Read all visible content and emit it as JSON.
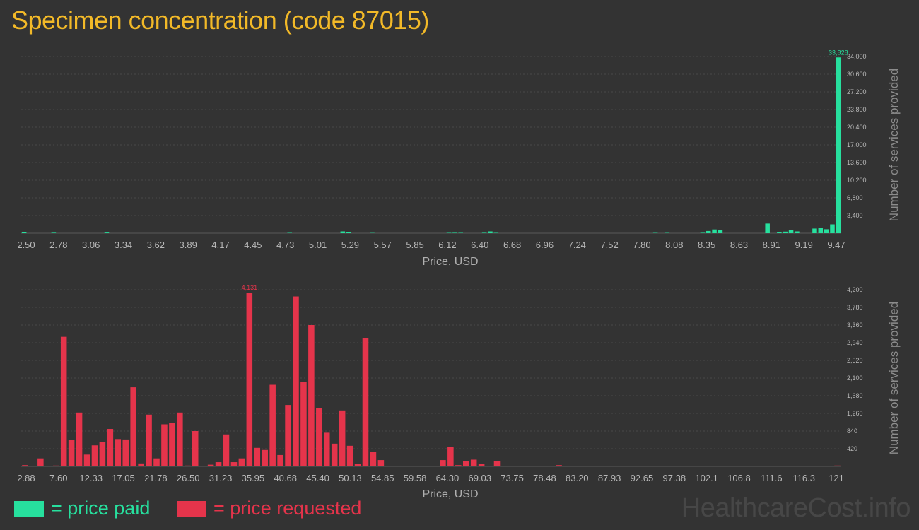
{
  "title": "Specimen concentration (code 87015)",
  "legend": {
    "paid": "= price paid",
    "requested": "= price requested"
  },
  "watermark": "HealthcareCost.info",
  "colors": {
    "paid": "#27e09e",
    "requested": "#e5344b",
    "title": "#f2b928",
    "background": "#333333"
  },
  "chart_data": [
    {
      "type": "bar",
      "name": "price paid",
      "xlabel": "Price, USD",
      "ylabel": "Number of services provided",
      "x_ticks": [
        "2.50",
        "2.78",
        "3.06",
        "3.34",
        "3.62",
        "3.89",
        "4.17",
        "4.45",
        "4.73",
        "5.01",
        "5.29",
        "5.57",
        "5.85",
        "6.12",
        "6.40",
        "6.68",
        "6.96",
        "7.24",
        "7.52",
        "7.80",
        "8.08",
        "8.35",
        "8.63",
        "8.91",
        "9.19",
        "9.47"
      ],
      "y_ticks": [
        "3,400",
        "6,800",
        "10,200",
        "13,600",
        "17,000",
        "20,400",
        "23,800",
        "27,200",
        "30,600",
        "34,000"
      ],
      "ylim": [
        0,
        34000
      ],
      "grid": true,
      "peak_label": "33,828",
      "values": [
        250,
        0,
        0,
        0,
        0,
        90,
        0,
        0,
        0,
        0,
        0,
        0,
        0,
        0,
        120,
        0,
        0,
        0,
        0,
        0,
        0,
        0,
        0,
        0,
        0,
        0,
        0,
        0,
        0,
        0,
        0,
        0,
        0,
        0,
        0,
        0,
        0,
        0,
        0,
        0,
        0,
        0,
        0,
        0,
        0,
        70,
        0,
        0,
        0,
        0,
        0,
        0,
        0,
        0,
        340,
        170,
        0,
        0,
        0,
        50,
        0,
        0,
        0,
        0,
        0,
        0,
        0,
        0,
        0,
        0,
        0,
        0,
        70,
        80,
        70,
        0,
        0,
        0,
        80,
        340,
        70,
        0,
        0,
        0,
        0,
        0,
        0,
        0,
        0,
        0,
        0,
        0,
        0,
        0,
        0,
        0,
        0,
        0,
        0,
        0,
        0,
        0,
        0,
        0,
        0,
        0,
        0,
        60,
        0,
        60,
        0,
        0,
        0,
        0,
        0,
        80,
        420,
        720,
        560,
        0,
        0,
        0,
        0,
        0,
        0,
        0,
        1850,
        0,
        170,
        300,
        680,
        340,
        0,
        0,
        890,
        1020,
        760,
        1700,
        33828
      ]
    },
    {
      "type": "bar",
      "name": "price requested",
      "xlabel": "Price, USD",
      "ylabel": "Number of services provided",
      "x_ticks": [
        "2.88",
        "7.60",
        "12.33",
        "17.05",
        "21.78",
        "26.50",
        "31.23",
        "35.95",
        "40.68",
        "45.40",
        "50.13",
        "54.85",
        "59.58",
        "64.30",
        "69.03",
        "73.75",
        "78.48",
        "83.20",
        "87.93",
        "92.65",
        "97.38",
        "102.1",
        "106.8",
        "111.6",
        "116.3",
        "121"
      ],
      "y_ticks": [
        "420",
        "840",
        "1,260",
        "1,680",
        "2,100",
        "2,520",
        "2,940",
        "3,360",
        "3,780",
        "4,200"
      ],
      "ylim": [
        0,
        4200
      ],
      "grid": true,
      "peak_label": "4,131",
      "values": [
        30,
        0,
        190,
        0,
        20,
        3080,
        630,
        1280,
        280,
        500,
        580,
        890,
        650,
        640,
        1880,
        70,
        1230,
        190,
        1000,
        1030,
        1280,
        20,
        840,
        0,
        40,
        100,
        760,
        100,
        190,
        4131,
        440,
        390,
        1940,
        270,
        1460,
        4040,
        2000,
        3360,
        1380,
        800,
        540,
        1330,
        490,
        60,
        3050,
        340,
        150,
        0,
        0,
        0,
        0,
        0,
        0,
        0,
        150,
        470,
        30,
        120,
        160,
        60,
        0,
        120,
        0,
        0,
        0,
        0,
        0,
        0,
        0,
        30,
        0,
        0,
        0,
        0,
        0,
        0,
        0,
        0,
        0,
        0,
        0,
        0,
        0,
        0,
        0,
        0,
        0,
        0,
        0,
        0,
        0,
        0,
        0,
        0,
        0,
        0,
        0,
        0,
        0,
        0,
        0,
        0,
        0,
        0,
        0,
        20
      ]
    }
  ]
}
